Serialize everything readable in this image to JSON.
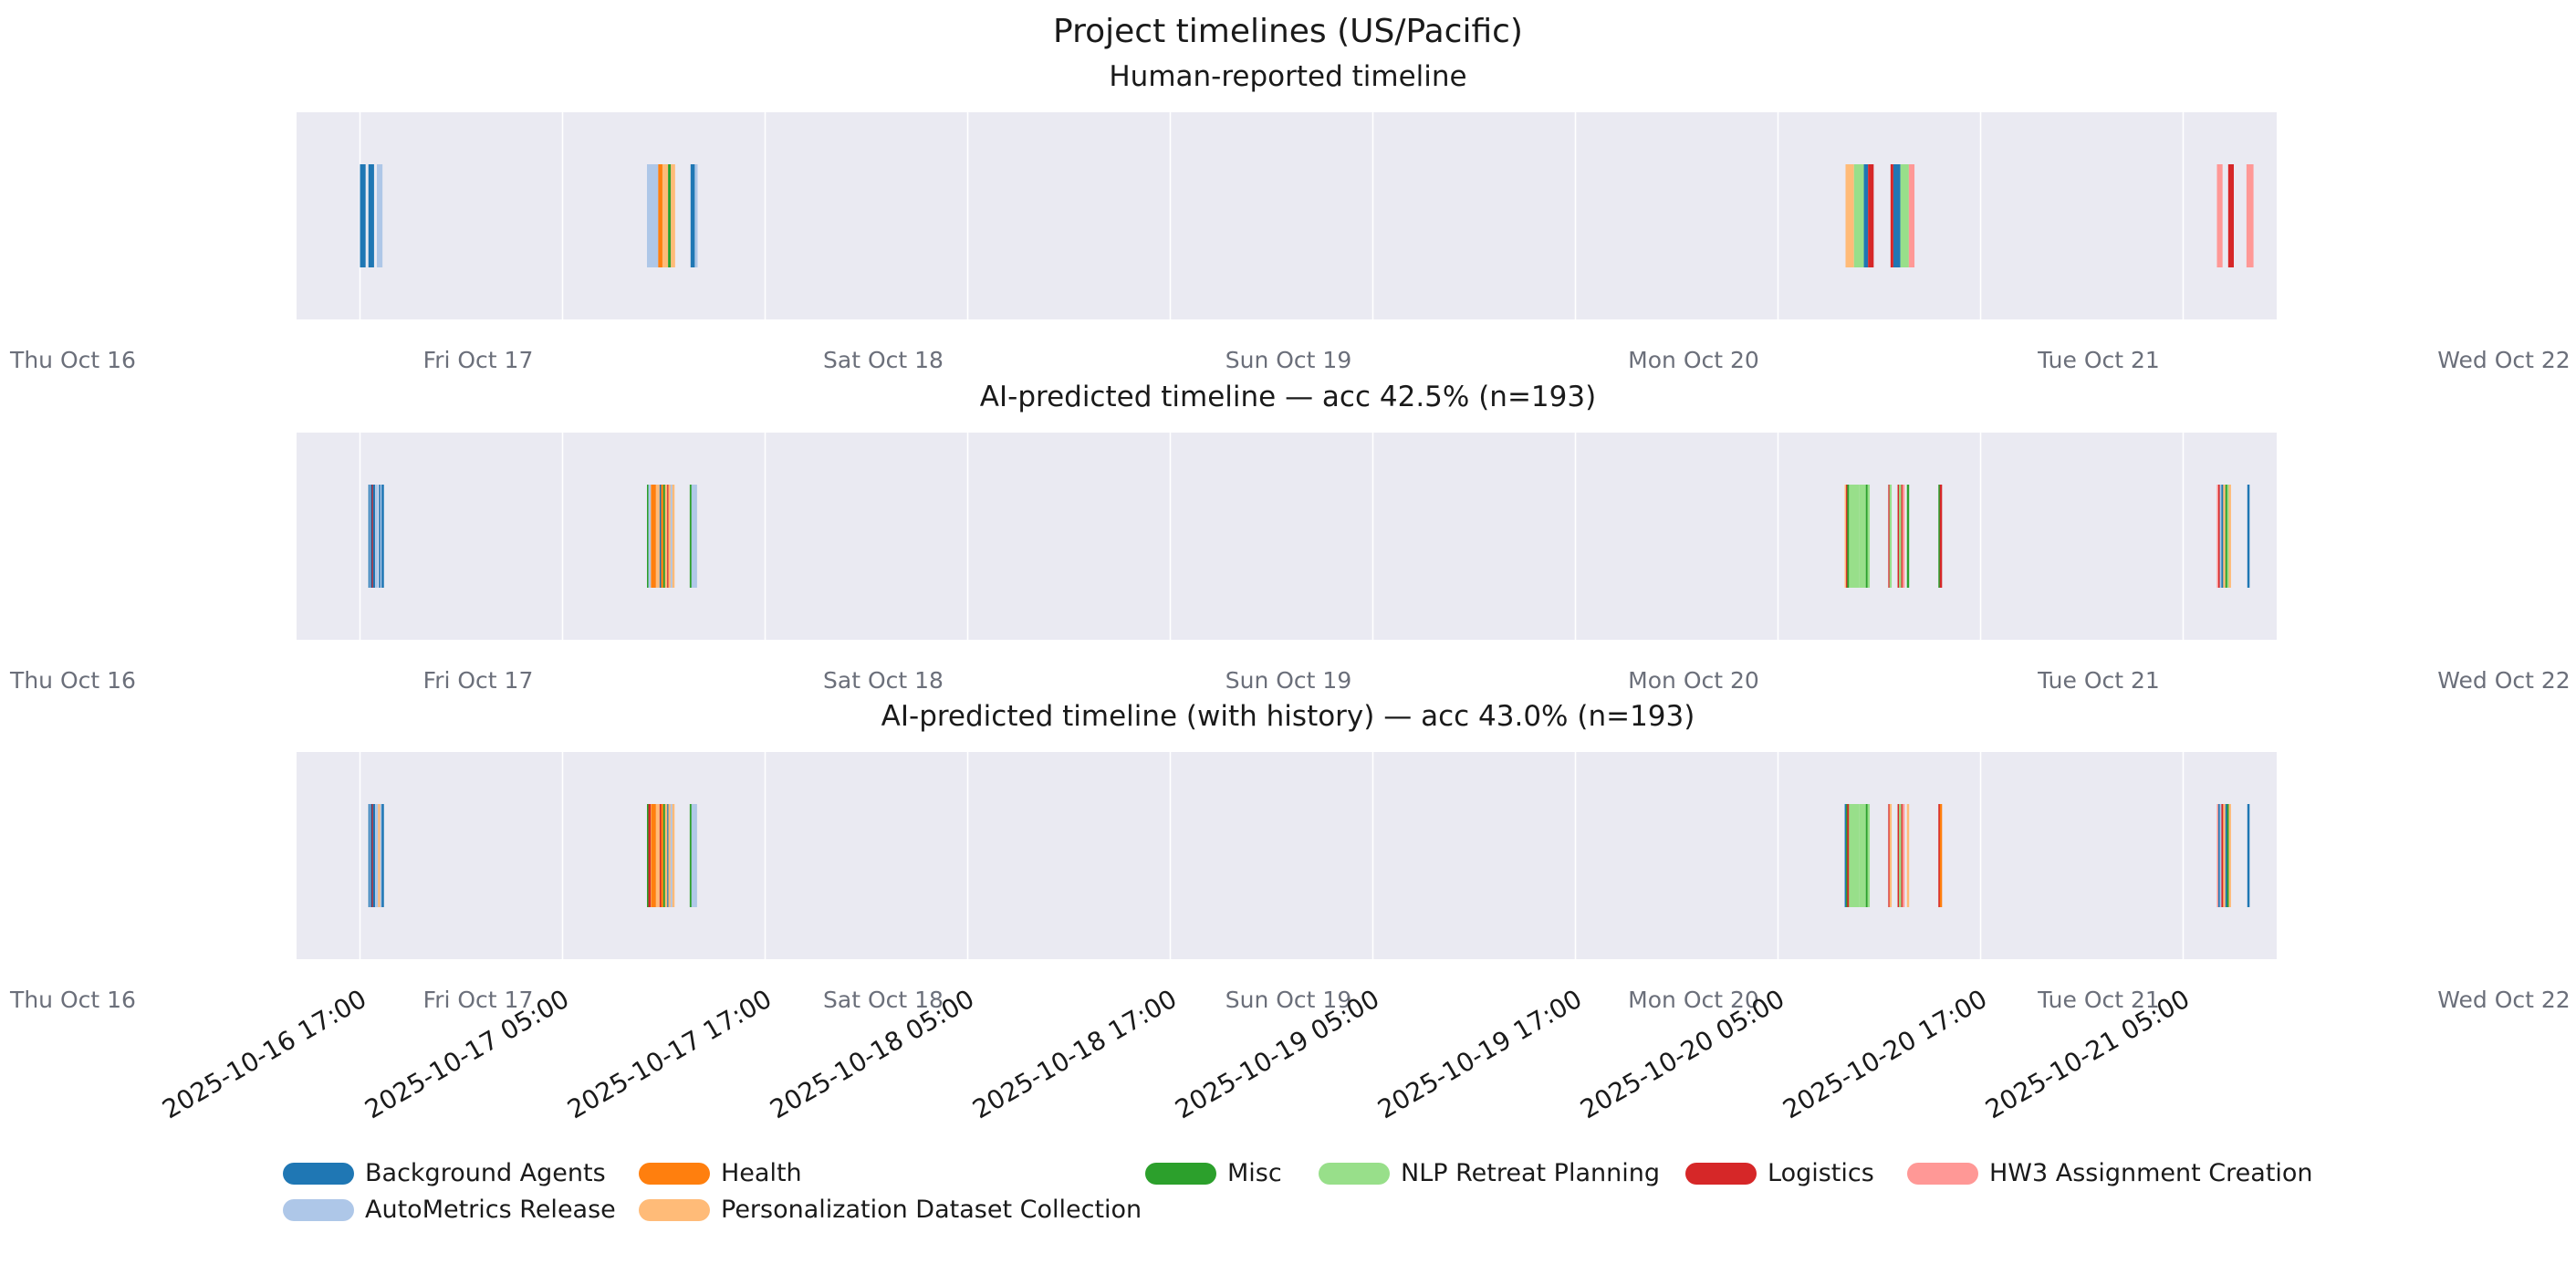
{
  "title": "Project timelines (US/Pacific)",
  "chart_data": [
    {
      "type": "timeline",
      "title": "Human-reported timeline",
      "xlim": [
        "2025-10-16 00:00",
        "2025-10-22 00:00"
      ],
      "segments": [
        {
          "start": "2025-10-16 17:00",
          "end": "2025-10-16 17:20",
          "project": "Background Agents"
        },
        {
          "start": "2025-10-16 17:30",
          "end": "2025-10-16 17:50",
          "project": "Background Agents"
        },
        {
          "start": "2025-10-16 18:00",
          "end": "2025-10-16 18:20",
          "project": "AutoMetrics Release"
        },
        {
          "start": "2025-10-17 10:00",
          "end": "2025-10-17 10:40",
          "project": "AutoMetrics Release"
        },
        {
          "start": "2025-10-17 10:40",
          "end": "2025-10-17 10:55",
          "project": "Health"
        },
        {
          "start": "2025-10-17 10:55",
          "end": "2025-10-17 11:15",
          "project": "Personalization Dataset Collection"
        },
        {
          "start": "2025-10-17 11:15",
          "end": "2025-10-17 11:25",
          "project": "Misc"
        },
        {
          "start": "2025-10-17 11:25",
          "end": "2025-10-17 11:40",
          "project": "Personalization Dataset Collection"
        },
        {
          "start": "2025-10-17 12:35",
          "end": "2025-10-17 12:50",
          "project": "Background Agents"
        },
        {
          "start": "2025-10-17 12:50",
          "end": "2025-10-17 13:00",
          "project": "AutoMetrics Release"
        },
        {
          "start": "2025-10-20 09:00",
          "end": "2025-10-20 09:30",
          "project": "Personalization Dataset Collection"
        },
        {
          "start": "2025-10-20 09:30",
          "end": "2025-10-20 10:05",
          "project": "NLP Retreat Planning"
        },
        {
          "start": "2025-10-20 10:05",
          "end": "2025-10-20 10:20",
          "project": "Background Agents"
        },
        {
          "start": "2025-10-20 10:20",
          "end": "2025-10-20 10:40",
          "project": "Logistics"
        },
        {
          "start": "2025-10-20 11:40",
          "end": "2025-10-20 11:50",
          "project": "Logistics"
        },
        {
          "start": "2025-10-20 11:50",
          "end": "2025-10-20 12:15",
          "project": "Background Agents"
        },
        {
          "start": "2025-10-20 12:15",
          "end": "2025-10-20 12:45",
          "project": "NLP Retreat Planning"
        },
        {
          "start": "2025-10-20 12:45",
          "end": "2025-10-20 13:05",
          "project": "HW3 Assignment Creation"
        },
        {
          "start": "2025-10-21 07:00",
          "end": "2025-10-21 07:20",
          "project": "HW3 Assignment Creation"
        },
        {
          "start": "2025-10-21 07:40",
          "end": "2025-10-21 08:00",
          "project": "Logistics"
        },
        {
          "start": "2025-10-21 08:45",
          "end": "2025-10-21 09:10",
          "project": "HW3 Assignment Creation"
        }
      ]
    },
    {
      "type": "timeline",
      "title": "AI-predicted timeline — acc 42.5% (n=193)",
      "xlim": [
        "2025-10-16 00:00",
        "2025-10-22 00:00"
      ],
      "segments": [
        {
          "start": "2025-10-16 17:30",
          "end": "2025-10-16 17:34",
          "project": "Background Agents"
        },
        {
          "start": "2025-10-16 17:34",
          "end": "2025-10-16 17:37",
          "project": "AutoMetrics Release"
        },
        {
          "start": "2025-10-16 17:37",
          "end": "2025-10-16 17:41",
          "project": "Background Agents"
        },
        {
          "start": "2025-10-16 17:42",
          "end": "2025-10-16 17:45",
          "project": "Logistics"
        },
        {
          "start": "2025-10-16 17:46",
          "end": "2025-10-16 17:52",
          "project": "Background Agents"
        },
        {
          "start": "2025-10-16 17:56",
          "end": "2025-10-16 18:00",
          "project": "AutoMetrics Release"
        },
        {
          "start": "2025-10-16 18:07",
          "end": "2025-10-16 18:12",
          "project": "Background Agents"
        },
        {
          "start": "2025-10-16 18:12",
          "end": "2025-10-16 18:17",
          "project": "AutoMetrics Release"
        },
        {
          "start": "2025-10-16 18:17",
          "end": "2025-10-16 18:22",
          "project": "Background Agents"
        },
        {
          "start": "2025-10-17 10:00",
          "end": "2025-10-17 10:05",
          "project": "Misc"
        },
        {
          "start": "2025-10-17 10:05",
          "end": "2025-10-17 10:12",
          "project": "AutoMetrics Release"
        },
        {
          "start": "2025-10-17 10:14",
          "end": "2025-10-17 10:32",
          "project": "Health"
        },
        {
          "start": "2025-10-17 10:32",
          "end": "2025-10-17 10:45",
          "project": "Personalization Dataset Collection"
        },
        {
          "start": "2025-10-17 10:45",
          "end": "2025-10-17 10:50",
          "project": "Background Agents"
        },
        {
          "start": "2025-10-17 10:50",
          "end": "2025-10-17 10:58",
          "project": "Health"
        },
        {
          "start": "2025-10-17 10:58",
          "end": "2025-10-17 11:04",
          "project": "Misc"
        },
        {
          "start": "2025-10-17 11:04",
          "end": "2025-10-17 11:12",
          "project": "Personalization Dataset Collection"
        },
        {
          "start": "2025-10-17 11:12",
          "end": "2025-10-17 11:16",
          "project": "Logistics"
        },
        {
          "start": "2025-10-17 11:16",
          "end": "2025-10-17 11:24",
          "project": "Personalization Dataset Collection"
        },
        {
          "start": "2025-10-17 11:24",
          "end": "2025-10-17 11:30",
          "project": "AutoMetrics Release"
        },
        {
          "start": "2025-10-17 11:30",
          "end": "2025-10-17 11:38",
          "project": "Personalization Dataset Collection"
        },
        {
          "start": "2025-10-17 12:32",
          "end": "2025-10-17 12:38",
          "project": "Misc"
        },
        {
          "start": "2025-10-17 12:38",
          "end": "2025-10-17 12:46",
          "project": "AutoMetrics Release"
        },
        {
          "start": "2025-10-17 12:46",
          "end": "2025-10-17 12:58",
          "project": "AutoMetrics Release"
        },
        {
          "start": "2025-10-20 08:57",
          "end": "2025-10-20 09:02",
          "project": "Personalization Dataset Collection"
        },
        {
          "start": "2025-10-20 09:02",
          "end": "2025-10-20 09:06",
          "project": "Logistics"
        },
        {
          "start": "2025-10-20 09:06",
          "end": "2025-10-20 09:12",
          "project": "Misc"
        },
        {
          "start": "2025-10-20 09:12",
          "end": "2025-10-20 09:48",
          "project": "NLP Retreat Planning"
        },
        {
          "start": "2025-10-20 09:48",
          "end": "2025-10-20 10:12",
          "project": "NLP Retreat Planning"
        },
        {
          "start": "2025-10-20 10:12",
          "end": "2025-10-20 10:18",
          "project": "Misc"
        },
        {
          "start": "2025-10-20 10:18",
          "end": "2025-10-20 10:26",
          "project": "NLP Retreat Planning"
        },
        {
          "start": "2025-10-20 11:32",
          "end": "2025-10-20 11:36",
          "project": "Logistics"
        },
        {
          "start": "2025-10-20 11:36",
          "end": "2025-10-20 11:42",
          "project": "NLP Retreat Planning"
        },
        {
          "start": "2025-10-20 12:05",
          "end": "2025-10-20 12:10",
          "project": "Logistics"
        },
        {
          "start": "2025-10-20 12:10",
          "end": "2025-10-20 12:18",
          "project": "NLP Retreat Planning"
        },
        {
          "start": "2025-10-20 12:18",
          "end": "2025-10-20 12:22",
          "project": "Logistics"
        },
        {
          "start": "2025-10-20 12:22",
          "end": "2025-10-20 12:30",
          "project": "HW3 Assignment Creation"
        },
        {
          "start": "2025-10-20 12:38",
          "end": "2025-10-20 12:42",
          "project": "Misc"
        },
        {
          "start": "2025-10-20 14:30",
          "end": "2025-10-20 14:35",
          "project": "Misc"
        },
        {
          "start": "2025-10-20 14:35",
          "end": "2025-10-20 14:42",
          "project": "Logistics"
        },
        {
          "start": "2025-10-21 07:00",
          "end": "2025-10-21 07:05",
          "project": "HW3 Assignment Creation"
        },
        {
          "start": "2025-10-21 07:05",
          "end": "2025-10-21 07:10",
          "project": "Logistics"
        },
        {
          "start": "2025-10-21 07:10",
          "end": "2025-10-21 07:16",
          "project": "AutoMetrics Release"
        },
        {
          "start": "2025-10-21 07:16",
          "end": "2025-10-21 07:22",
          "project": "Background Agents"
        },
        {
          "start": "2025-10-21 07:22",
          "end": "2025-10-21 07:30",
          "project": "Personalization Dataset Collection"
        },
        {
          "start": "2025-10-21 07:30",
          "end": "2025-10-21 07:36",
          "project": "Misc"
        },
        {
          "start": "2025-10-21 07:36",
          "end": "2025-10-21 07:42",
          "project": "NLP Retreat Planning"
        },
        {
          "start": "2025-10-21 07:42",
          "end": "2025-10-21 07:50",
          "project": "Personalization Dataset Collection"
        },
        {
          "start": "2025-10-21 08:48",
          "end": "2025-10-21 08:52",
          "project": "Background Agents"
        }
      ]
    },
    {
      "type": "timeline",
      "title": "AI-predicted timeline (with history) — acc 43.0% (n=193)",
      "xlim": [
        "2025-10-16 00:00",
        "2025-10-22 00:00"
      ],
      "segments": [
        {
          "start": "2025-10-16 17:30",
          "end": "2025-10-16 17:34",
          "project": "Background Agents"
        },
        {
          "start": "2025-10-16 17:34",
          "end": "2025-10-16 17:37",
          "project": "AutoMetrics Release"
        },
        {
          "start": "2025-10-16 17:37",
          "end": "2025-10-16 17:41",
          "project": "Background Agents"
        },
        {
          "start": "2025-10-16 17:42",
          "end": "2025-10-16 17:45",
          "project": "Logistics"
        },
        {
          "start": "2025-10-16 17:46",
          "end": "2025-10-16 17:52",
          "project": "Background Agents"
        },
        {
          "start": "2025-10-16 17:56",
          "end": "2025-10-16 18:00",
          "project": "AutoMetrics Release"
        },
        {
          "start": "2025-10-16 18:04",
          "end": "2025-10-16 18:10",
          "project": "Personalization Dataset Collection"
        },
        {
          "start": "2025-10-16 18:12",
          "end": "2025-10-16 18:17",
          "project": "AutoMetrics Release"
        },
        {
          "start": "2025-10-16 18:17",
          "end": "2025-10-16 18:22",
          "project": "Background Agents"
        },
        {
          "start": "2025-10-17 10:00",
          "end": "2025-10-17 10:05",
          "project": "Misc"
        },
        {
          "start": "2025-10-17 10:05",
          "end": "2025-10-17 10:12",
          "project": "Logistics"
        },
        {
          "start": "2025-10-17 10:14",
          "end": "2025-10-17 10:32",
          "project": "Health"
        },
        {
          "start": "2025-10-17 10:32",
          "end": "2025-10-17 10:45",
          "project": "Personalization Dataset Collection"
        },
        {
          "start": "2025-10-17 10:45",
          "end": "2025-10-17 10:50",
          "project": "Logistics"
        },
        {
          "start": "2025-10-17 10:50",
          "end": "2025-10-17 10:58",
          "project": "Health"
        },
        {
          "start": "2025-10-17 10:58",
          "end": "2025-10-17 11:04",
          "project": "Misc"
        },
        {
          "start": "2025-10-17 11:04",
          "end": "2025-10-17 11:12",
          "project": "Personalization Dataset Collection"
        },
        {
          "start": "2025-10-17 11:12",
          "end": "2025-10-17 11:16",
          "project": "Background Agents"
        },
        {
          "start": "2025-10-17 11:16",
          "end": "2025-10-17 11:24",
          "project": "Personalization Dataset Collection"
        },
        {
          "start": "2025-10-17 11:24",
          "end": "2025-10-17 11:30",
          "project": "AutoMetrics Release"
        },
        {
          "start": "2025-10-17 11:30",
          "end": "2025-10-17 11:38",
          "project": "Personalization Dataset Collection"
        },
        {
          "start": "2025-10-17 12:32",
          "end": "2025-10-17 12:38",
          "project": "Misc"
        },
        {
          "start": "2025-10-17 12:38",
          "end": "2025-10-17 12:46",
          "project": "AutoMetrics Release"
        },
        {
          "start": "2025-10-17 12:46",
          "end": "2025-10-17 12:58",
          "project": "AutoMetrics Release"
        },
        {
          "start": "2025-10-20 08:57",
          "end": "2025-10-20 09:02",
          "project": "Background Agents"
        },
        {
          "start": "2025-10-20 09:02",
          "end": "2025-10-20 09:06",
          "project": "Misc"
        },
        {
          "start": "2025-10-20 09:06",
          "end": "2025-10-20 09:12",
          "project": "Logistics"
        },
        {
          "start": "2025-10-20 09:12",
          "end": "2025-10-20 09:48",
          "project": "NLP Retreat Planning"
        },
        {
          "start": "2025-10-20 09:48",
          "end": "2025-10-20 10:12",
          "project": "NLP Retreat Planning"
        },
        {
          "start": "2025-10-20 10:12",
          "end": "2025-10-20 10:18",
          "project": "Misc"
        },
        {
          "start": "2025-10-20 10:18",
          "end": "2025-10-20 10:26",
          "project": "NLP Retreat Planning"
        },
        {
          "start": "2025-10-20 11:32",
          "end": "2025-10-20 11:36",
          "project": "Logistics"
        },
        {
          "start": "2025-10-20 11:36",
          "end": "2025-10-20 11:42",
          "project": "Personalization Dataset Collection"
        },
        {
          "start": "2025-10-20 12:05",
          "end": "2025-10-20 12:10",
          "project": "Logistics"
        },
        {
          "start": "2025-10-20 12:10",
          "end": "2025-10-20 12:18",
          "project": "NLP Retreat Planning"
        },
        {
          "start": "2025-10-20 12:18",
          "end": "2025-10-20 12:22",
          "project": "Logistics"
        },
        {
          "start": "2025-10-20 12:22",
          "end": "2025-10-20 12:30",
          "project": "HW3 Assignment Creation"
        },
        {
          "start": "2025-10-20 12:38",
          "end": "2025-10-20 12:42",
          "project": "Personalization Dataset Collection"
        },
        {
          "start": "2025-10-20 14:30",
          "end": "2025-10-20 14:35",
          "project": "Logistics"
        },
        {
          "start": "2025-10-20 14:35",
          "end": "2025-10-20 14:42",
          "project": "Health"
        },
        {
          "start": "2025-10-21 07:00",
          "end": "2025-10-21 07:05",
          "project": "HW3 Assignment Creation"
        },
        {
          "start": "2025-10-21 07:05",
          "end": "2025-10-21 07:10",
          "project": "Background Agents"
        },
        {
          "start": "2025-10-21 07:10",
          "end": "2025-10-21 07:16",
          "project": "AutoMetrics Release"
        },
        {
          "start": "2025-10-21 07:16",
          "end": "2025-10-21 07:22",
          "project": "Logistics"
        },
        {
          "start": "2025-10-21 07:22",
          "end": "2025-10-21 07:30",
          "project": "Personalization Dataset Collection"
        },
        {
          "start": "2025-10-21 07:30",
          "end": "2025-10-21 07:36",
          "project": "Background Agents"
        },
        {
          "start": "2025-10-21 07:36",
          "end": "2025-10-21 07:42",
          "project": "Misc"
        },
        {
          "start": "2025-10-21 07:42",
          "end": "2025-10-21 07:50",
          "project": "Personalization Dataset Collection"
        },
        {
          "start": "2025-10-21 08:48",
          "end": "2025-10-21 08:52",
          "project": "Background Agents"
        }
      ]
    }
  ],
  "day_labels": [
    {
      "label": "Thu Oct 16",
      "time": "2025-10-16 00:00"
    },
    {
      "label": "Fri Oct 17",
      "time": "2025-10-17 00:00"
    },
    {
      "label": "Sat Oct 18",
      "time": "2025-10-18 00:00"
    },
    {
      "label": "Sun Oct 19",
      "time": "2025-10-19 00:00"
    },
    {
      "label": "Mon Oct 20",
      "time": "2025-10-20 00:00"
    },
    {
      "label": "Tue Oct 21",
      "time": "2025-10-21 00:00"
    },
    {
      "label": "Wed Oct 22",
      "time": "2025-10-22 00:00"
    }
  ],
  "x_ticks": [
    "2025-10-16 17:00",
    "2025-10-17 05:00",
    "2025-10-17 17:00",
    "2025-10-18 05:00",
    "2025-10-18 17:00",
    "2025-10-19 05:00",
    "2025-10-19 17:00",
    "2025-10-20 05:00",
    "2025-10-20 17:00",
    "2025-10-21 05:00"
  ],
  "legend": [
    {
      "name": "Background Agents",
      "color": "#1f77b4"
    },
    {
      "name": "AutoMetrics Release",
      "color": "#aec7e8"
    },
    {
      "name": "Health",
      "color": "#ff7f0e"
    },
    {
      "name": "Personalization Dataset Collection",
      "color": "#ffbb78"
    },
    {
      "name": "Misc",
      "color": "#2ca02c"
    },
    {
      "name": "NLP Retreat Planning",
      "color": "#98df8a"
    },
    {
      "name": "Logistics",
      "color": "#d62728"
    },
    {
      "name": "HW3 Assignment Creation",
      "color": "#ff9896"
    }
  ]
}
